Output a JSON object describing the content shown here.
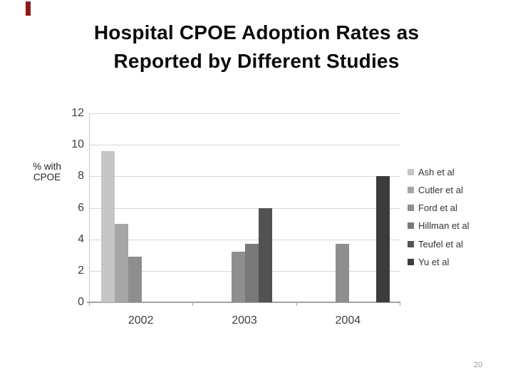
{
  "slide": {
    "title_lines": [
      "Hospital CPOE Adoption Rates as",
      "Reported by Different Studies"
    ],
    "page_number": "20",
    "accent_color": "#8D1B1E"
  },
  "chart_data": {
    "type": "bar",
    "title": "Hospital CPOE Adoption Rates as Reported by Different Studies",
    "xlabel": "",
    "ylabel": "% with CPOE",
    "ylabel_lines": [
      "% with",
      "CPOE"
    ],
    "categories": [
      "2002",
      "2003",
      "2004"
    ],
    "series": [
      {
        "name": "Ash et al",
        "color": "#C6C6C6",
        "values": [
          9.6,
          null,
          null
        ]
      },
      {
        "name": "Cutler et al",
        "color": "#A6A6A6",
        "values": [
          5.0,
          null,
          null
        ]
      },
      {
        "name": "Ford et al",
        "color": "#8E8E8E",
        "values": [
          2.9,
          3.2,
          3.7
        ]
      },
      {
        "name": "Hillman et al",
        "color": "#787878",
        "values": [
          null,
          3.7,
          null
        ]
      },
      {
        "name": "Teufel et al",
        "color": "#525252",
        "values": [
          null,
          6.0,
          null
        ]
      },
      {
        "name": "Yu et al",
        "color": "#3C3C3C",
        "values": [
          null,
          null,
          8.0
        ]
      }
    ],
    "ylim": [
      0,
      12
    ],
    "yticks": [
      0,
      2,
      4,
      6,
      8,
      10,
      12
    ],
    "grid": true,
    "legend_position": "right"
  }
}
